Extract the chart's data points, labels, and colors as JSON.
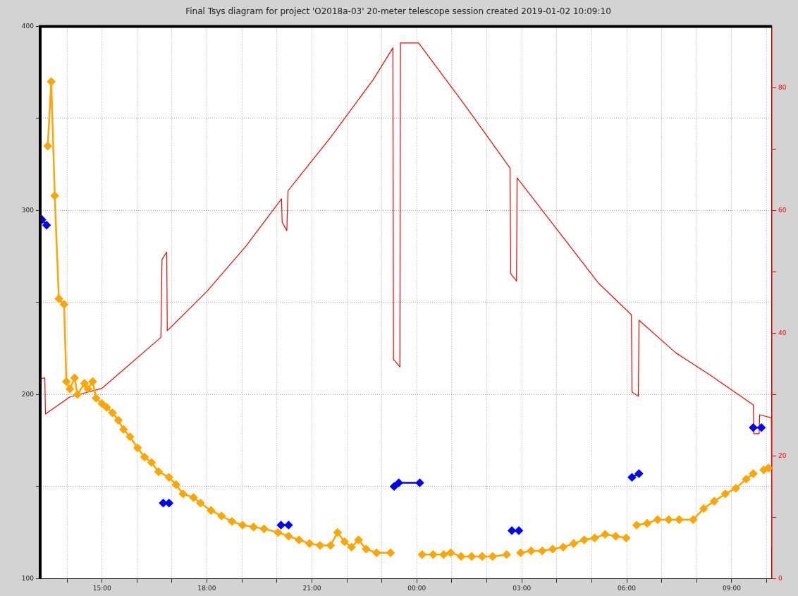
{
  "chart_data": {
    "type": "line",
    "title": "Final Tsys diagram for project 'O2018a-03' 20-meter telescope session created 2019-01-02 10:09:10",
    "xlim": [
      "2019-01-01T13:14",
      "2019-01-02T10:09"
    ],
    "xticks": [
      {
        "value": "2019-01-01T14:00",
        "label": null
      },
      {
        "value": "2019-01-01T15:00",
        "label": "15:00"
      },
      {
        "value": "2019-01-01T16:00",
        "label": null
      },
      {
        "value": "2019-01-01T17:00",
        "label": null
      },
      {
        "value": "2019-01-01T18:00",
        "label": "18:00"
      },
      {
        "value": "2019-01-01T19:00",
        "label": null
      },
      {
        "value": "2019-01-01T20:00",
        "label": null
      },
      {
        "value": "2019-01-01T21:00",
        "label": "21:00"
      },
      {
        "value": "2019-01-01T22:00",
        "label": null
      },
      {
        "value": "2019-01-01T23:00",
        "label": null
      },
      {
        "value": "2019-01-02T00:00",
        "label": "00:00"
      },
      {
        "value": "2019-01-02T01:00",
        "label": null
      },
      {
        "value": "2019-01-02T02:00",
        "label": null
      },
      {
        "value": "2019-01-02T03:00",
        "label": "03:00"
      },
      {
        "value": "2019-01-02T04:00",
        "label": null
      },
      {
        "value": "2019-01-02T05:00",
        "label": null
      },
      {
        "value": "2019-01-02T06:00",
        "label": "06:00"
      },
      {
        "value": "2019-01-02T07:00",
        "label": null
      },
      {
        "value": "2019-01-02T08:00",
        "label": null
      },
      {
        "value": "2019-01-02T09:00",
        "label": "09:00"
      },
      {
        "value": "2019-01-02T10:00",
        "label": null
      }
    ],
    "ylim": [
      100,
      400
    ],
    "yticks": [
      100,
      {
        "value": 150,
        "label": null
      },
      200,
      {
        "value": 250,
        "label": null
      },
      300,
      {
        "value": 350,
        "label": null
      },
      400
    ],
    "y2lim": [
      0,
      90
    ],
    "y2ticks": [
      0,
      {
        "value": 10,
        "label": null
      },
      20,
      {
        "value": 30,
        "label": null
      },
      40,
      {
        "value": 50,
        "label": null
      },
      60,
      {
        "value": 70,
        "label": null
      },
      80
    ],
    "grid": true,
    "marker": "diamond",
    "series": [
      {
        "color": "#ffa500",
        "x": [
          "2019-01-01T13:27",
          "2019-01-01T13:33",
          "2019-01-01T13:39",
          "2019-01-01T13:46",
          "2019-01-01T13:55",
          "2019-01-01T13:59",
          "2019-01-01T14:05",
          "2019-01-01T14:13",
          "2019-01-01T14:18",
          "2019-01-01T14:30",
          "2019-01-01T14:36",
          "2019-01-01T14:44",
          "2019-01-01T14:50",
          "2019-01-01T15:00",
          "2019-01-01T15:08",
          "2019-01-01T15:18",
          "2019-01-01T15:28",
          "2019-01-01T15:37",
          "2019-01-01T15:48",
          "2019-01-01T16:01",
          "2019-01-01T16:13",
          "2019-01-01T16:25",
          "2019-01-01T16:37",
          "2019-01-01T16:55",
          "2019-01-01T17:07",
          "2019-01-01T17:19",
          "2019-01-01T17:37",
          "2019-01-01T17:49",
          "2019-01-01T18:07",
          "2019-01-01T18:25",
          "2019-01-01T18:43",
          "2019-01-01T19:01",
          "2019-01-01T19:20",
          "2019-01-01T19:38",
          "2019-01-01T20:02",
          "2019-01-01T20:20",
          "2019-01-01T20:38",
          "2019-01-01T20:56",
          "2019-01-01T21:14",
          "2019-01-01T21:32",
          "2019-01-01T21:44",
          "2019-01-01T21:56",
          "2019-01-01T22:08",
          "2019-01-01T22:20",
          "2019-01-01T22:33",
          "2019-01-01T22:51",
          "2019-01-01T23:15",
          "2019-01-01T23:42",
          "2019-01-02T00:09",
          "2019-01-02T00:28",
          "2019-01-02T00:46",
          "2019-01-02T00:58",
          "2019-01-02T01:16",
          "2019-01-02T01:34",
          "2019-01-02T01:52",
          "2019-01-02T02:10",
          "2019-01-02T02:34",
          "2019-01-02T02:48",
          "2019-01-02T02:58",
          "2019-01-02T03:16",
          "2019-01-02T03:35",
          "2019-01-02T03:53",
          "2019-01-02T04:11",
          "2019-01-02T04:29",
          "2019-01-02T04:47",
          "2019-01-02T05:05",
          "2019-01-02T05:23",
          "2019-01-02T05:41",
          "2019-01-02T05:59",
          "2019-01-02T06:09",
          "2019-01-02T06:17",
          "2019-01-02T06:35",
          "2019-01-02T06:53",
          "2019-01-02T07:12",
          "2019-01-02T07:30",
          "2019-01-02T07:54",
          "2019-01-02T08:12",
          "2019-01-02T08:30",
          "2019-01-02T08:49",
          "2019-01-02T09:07",
          "2019-01-02T09:25",
          "2019-01-02T09:37",
          "2019-01-02T09:45",
          "2019-01-02T09:55",
          "2019-01-02T10:03"
        ],
        "values": [
          335,
          370,
          308,
          252,
          249,
          207,
          203,
          209,
          200,
          206,
          203,
          207,
          198,
          195,
          193,
          190,
          186,
          181,
          177,
          171,
          166,
          163,
          158,
          155,
          151,
          146,
          144,
          141,
          137,
          134,
          131,
          129,
          128,
          127,
          125,
          123,
          121,
          119,
          118,
          118,
          125,
          120,
          117,
          121,
          116,
          114,
          114,
          null,
          113,
          113,
          113,
          114,
          112,
          112,
          112,
          112,
          113,
          null,
          114,
          115,
          115,
          116,
          117,
          119,
          121,
          122,
          124,
          123,
          122,
          null,
          129,
          130,
          132,
          132,
          132,
          132,
          138,
          142,
          146,
          149,
          154,
          157,
          null,
          159,
          160
        ]
      },
      {
        "color": "#0000ff",
        "x": [
          "2019-01-01T13:17",
          "2019-01-01T13:25",
          "2019-01-01T15:00",
          "2019-01-01T16:45",
          "2019-01-01T16:55",
          "2019-01-01T18:00",
          "2019-01-01T20:07",
          "2019-01-01T20:20",
          "2019-01-01T22:00",
          "2019-01-01T23:21",
          "2019-01-01T23:29",
          "2019-01-02T00:05",
          "2019-01-02T01:00",
          "2019-01-02T02:43",
          "2019-01-02T02:55",
          "2019-01-02T04:00",
          "2019-01-02T06:09",
          "2019-01-02T06:21",
          "2019-01-02T08:00",
          "2019-01-02T09:37",
          "2019-01-02T09:51"
        ],
        "values": [
          295,
          292,
          null,
          141,
          141,
          null,
          129,
          129,
          null,
          150,
          152,
          152,
          null,
          126,
          126,
          null,
          155,
          157,
          null,
          182,
          182
        ]
      },
      {
        "color": "#ff0000",
        "axis": "y2",
        "marker": "none",
        "x": [
          "2019-01-01T13:14",
          "2019-01-01T13:22",
          "2019-01-01T13:23",
          "2019-01-01T14:05",
          "2019-01-01T15:00",
          "2019-01-01T16:41",
          "2019-01-01T16:43",
          "2019-01-01T16:51",
          "2019-01-01T16:52",
          "2019-01-01T17:25",
          "2019-01-01T18:00",
          "2019-01-01T19:07",
          "2019-01-01T20:08",
          "2019-01-01T20:09",
          "2019-01-01T20:17",
          "2019-01-01T20:19",
          "2019-01-01T21:32",
          "2019-01-01T22:45",
          "2019-01-01T23:19",
          "2019-01-01T23:20",
          "2019-01-01T23:31",
          "2019-01-01T23:32",
          "2019-01-02T00:03",
          "2019-01-02T01:22",
          "2019-01-02T02:40",
          "2019-01-02T02:41",
          "2019-01-02T02:51",
          "2019-01-02T02:52",
          "2019-01-02T04:11",
          "2019-01-02T05:11",
          "2019-01-02T06:08",
          "2019-01-02T06:09",
          "2019-01-02T06:20",
          "2019-01-02T06:21",
          "2019-01-02T07:24",
          "2019-01-02T08:24",
          "2019-01-02T09:37",
          "2019-01-02T09:38",
          "2019-01-02T09:47",
          "2019-01-02T09:48",
          "2019-01-02T10:08",
          "2019-01-02T10:09"
        ],
        "values": [
          32.6,
          32.7,
          26.8,
          29.6,
          31,
          39.3,
          52,
          53.2,
          40.4,
          43.5,
          46.8,
          54.2,
          61.9,
          58.1,
          56.7,
          63.2,
          71.9,
          81.3,
          86.5,
          35.7,
          34.5,
          87.3,
          87.3,
          77.2,
          66.9,
          49.7,
          48.5,
          65.3,
          55.6,
          48.2,
          43,
          30.4,
          29.7,
          42.1,
          36.8,
          33.1,
          28.3,
          23.6,
          23.6,
          26.7,
          26.2,
          5.1
        ]
      }
    ]
  }
}
